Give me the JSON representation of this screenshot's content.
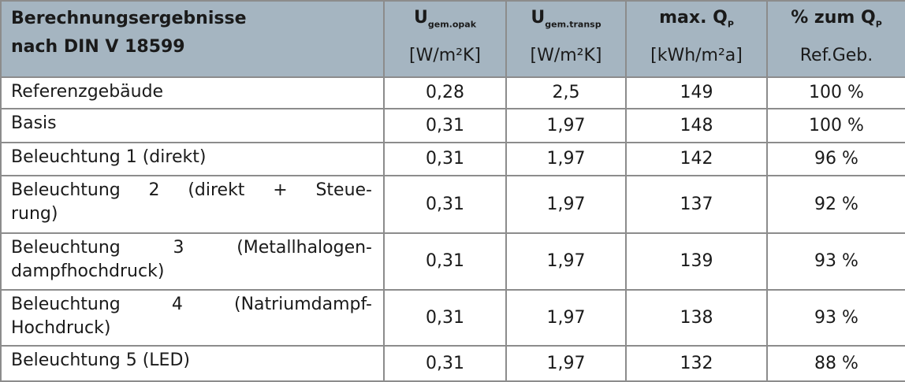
{
  "header": {
    "title": [
      "Berechnungsergebnisse",
      "nach DIN V 18599"
    ],
    "columns": [
      {
        "main": "U",
        "sub": "gem.opak",
        "unit": "[W/m²K]"
      },
      {
        "main": "U",
        "sub": "gem.transp",
        "unit": "[W/m²K]"
      },
      {
        "main": "max. Q",
        "sub": "P",
        "unit": "[kWh/m²a]"
      },
      {
        "main": "% zum Q",
        "sub": "P",
        "unit": "Ref.Geb."
      }
    ]
  },
  "table": {
    "rows": [
      {
        "label": [
          "Referenzgebäude"
        ],
        "cells": [
          "0,28",
          "2,5",
          "149",
          "100 %"
        ]
      },
      {
        "label": [
          "Basis"
        ],
        "cells": [
          "0,31",
          "1,97",
          "148",
          "100 %"
        ]
      },
      {
        "label": [
          "Beleuchtung 1 (direkt)"
        ],
        "cells": [
          "0,31",
          "1,97",
          "142",
          "96 %"
        ]
      },
      {
        "label": [
          "Beleuchtung 2 (direkt + Steue-",
          "rung)"
        ],
        "cells": [
          "0,31",
          "1,97",
          "137",
          "92 %"
        ]
      },
      {
        "label": [
          "Beleuchtung 3 (Metallhalogen-",
          "dampfhochdruck)"
        ],
        "cells": [
          "0,31",
          "1,97",
          "139",
          "93 %"
        ]
      },
      {
        "label": [
          "Beleuchtung 4 (Natriumdampf-",
          "Hochdruck)"
        ],
        "cells": [
          "0,31",
          "1,97",
          "138",
          "93 %"
        ]
      },
      {
        "label": [
          "Beleuchtung 5 (LED)"
        ],
        "cells": [
          "0,31",
          "1,97",
          "132",
          "88 %"
        ]
      }
    ]
  }
}
